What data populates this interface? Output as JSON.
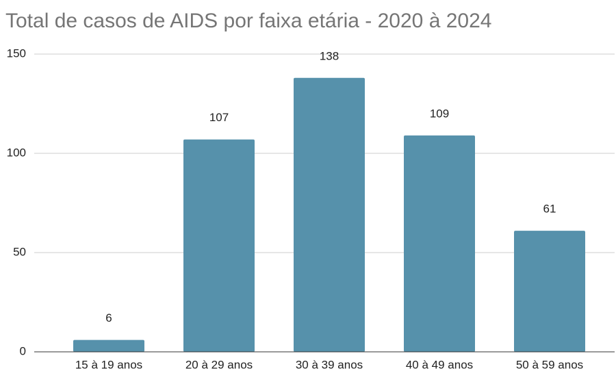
{
  "chart_data": {
    "type": "bar",
    "title": "Total de casos de AIDS por faixa etária - 2020 à 2024",
    "categories": [
      "15 à 19 anos",
      "20 à 29 anos",
      "30 à 39 anos",
      "40 à 49 anos",
      "50 à 59 anos"
    ],
    "values": [
      6,
      107,
      138,
      109,
      61
    ],
    "color": "#5691ab",
    "ylim": [
      0,
      150
    ],
    "yticks": [
      0,
      50,
      100,
      150
    ],
    "grid": true
  }
}
